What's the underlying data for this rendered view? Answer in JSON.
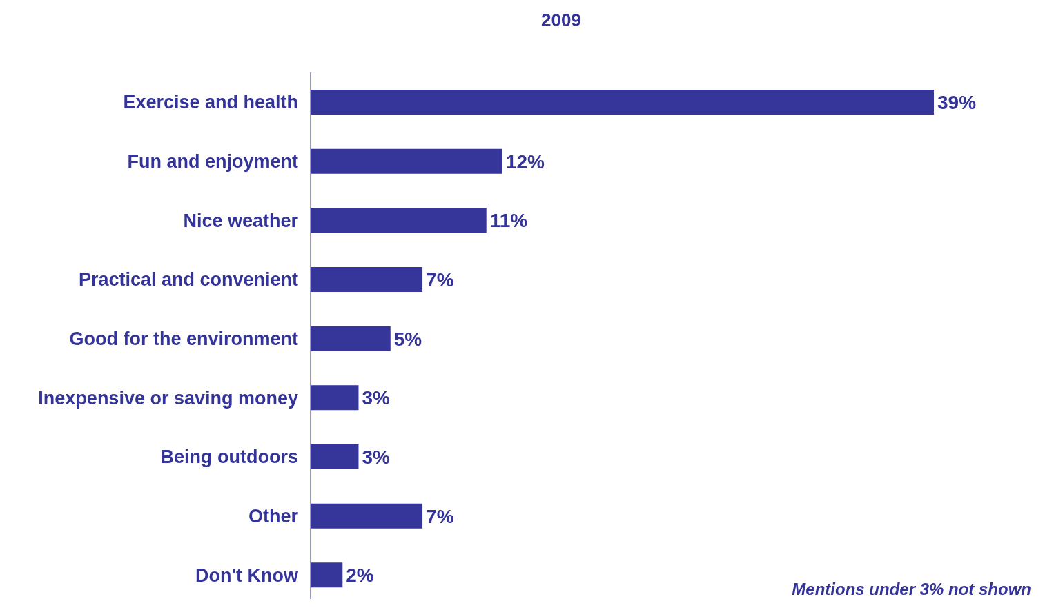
{
  "chart_data": {
    "type": "bar",
    "orientation": "horizontal",
    "title": "2009",
    "categories": [
      "Exercise and health",
      "Fun and enjoyment",
      "Nice weather",
      "Practical and convenient",
      "Good for the environment",
      "Inexpensive or saving money",
      "Being outdoors",
      "Other",
      "Don't Know"
    ],
    "values": [
      39,
      12,
      11,
      7,
      5,
      3,
      3,
      7,
      2
    ],
    "value_labels": [
      "39%",
      "12%",
      "11%",
      "7%",
      "5%",
      "3%",
      "3%",
      "7%",
      "2%"
    ],
    "color": "#35359a",
    "annotations": [
      "Mentions under 3% not shown"
    ]
  }
}
